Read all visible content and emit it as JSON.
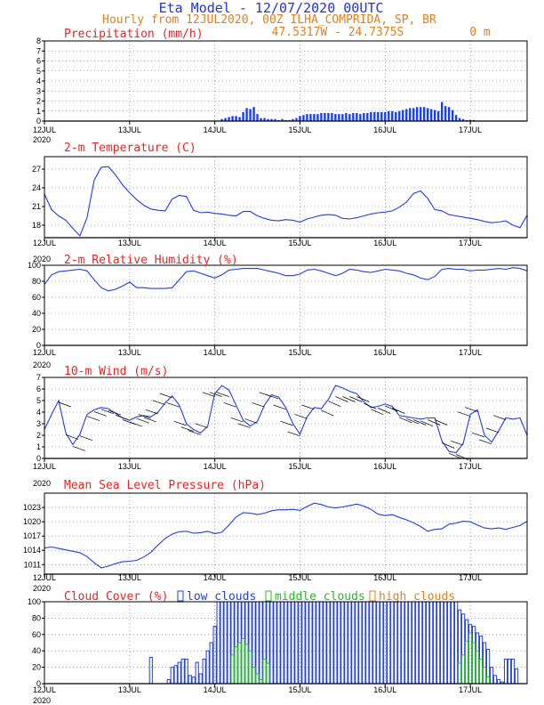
{
  "header": {
    "title": "Eta Model - 12/07/2020 00UTC",
    "subtitle": "Hourly from 12JUL2020, 00Z  ILHA_COMPRIDA, SP, BR",
    "coords": "47.5317W - 24.7375S",
    "elevation": "0  m"
  },
  "colors": {
    "title": "#2233dd",
    "subtitle": "#e08020",
    "panel_title": "#ee2222",
    "series": "#1f3fe0",
    "low": "#1f3fe0",
    "middle": "#22bb22",
    "high": "#e08020"
  },
  "x_ticks": [
    "12JUL",
    "13JUL",
    "14JUL",
    "15JUL",
    "16JUL",
    "17JUL"
  ],
  "x_year": "2020",
  "chart_data": [
    {
      "id": "precip",
      "type": "bar",
      "title": "Precipitation (mm/h)",
      "ylim": [
        0,
        8
      ],
      "yticks": [
        0,
        1,
        2,
        3,
        4,
        5,
        6,
        7,
        8
      ],
      "grid": true,
      "x": [
        50,
        51,
        52,
        53,
        54,
        55,
        56,
        57,
        58,
        59,
        60,
        61,
        62,
        63,
        64,
        65,
        66,
        67,
        68,
        69,
        70,
        71,
        72,
        73,
        74,
        75,
        76,
        77,
        78,
        79,
        80,
        81,
        82,
        83,
        84,
        85,
        86,
        87,
        88,
        89,
        90,
        91,
        92,
        93,
        94,
        95,
        96,
        97,
        98,
        99,
        100,
        101,
        102,
        103,
        104,
        105,
        106,
        107,
        108,
        109,
        110,
        111,
        112,
        113,
        114,
        115,
        116,
        117,
        118,
        119,
        120,
        121
      ],
      "values": [
        0.2,
        0.3,
        0.4,
        0.5,
        0.5,
        0.4,
        0.9,
        1.3,
        1.2,
        1.4,
        0.7,
        0.3,
        0.3,
        0.2,
        0.2,
        0.2,
        0.1,
        0.2,
        0.1,
        0.1,
        0.2,
        0.3,
        0.5,
        0.6,
        0.7,
        0.7,
        0.7,
        0.7,
        0.8,
        0.8,
        0.8,
        0.8,
        0.7,
        0.7,
        0.7,
        0.8,
        0.7,
        0.8,
        0.8,
        0.7,
        0.8,
        0.8,
        0.9,
        0.9,
        0.9,
        0.9,
        0.9,
        1.0,
        1.0,
        0.9,
        1.0,
        1.1,
        1.2,
        1.3,
        1.3,
        1.4,
        1.4,
        1.4,
        1.3,
        1.2,
        1.1,
        1.0,
        1.9,
        1.5,
        1.4,
        1.1,
        0.6,
        0.3,
        0.2,
        0.1,
        0.1,
        0.1
      ]
    },
    {
      "id": "temp",
      "type": "line",
      "title": "2-m Temperature (C)",
      "ylim": [
        16,
        29
      ],
      "yticks": [
        18,
        21,
        24,
        27
      ],
      "grid": true,
      "x": [
        0,
        2,
        4,
        6,
        8,
        10,
        12,
        14,
        16,
        18,
        20,
        22,
        24,
        26,
        28,
        30,
        32,
        34,
        36,
        38,
        40,
        42,
        44,
        46,
        48,
        50,
        52,
        54,
        56,
        58,
        60,
        62,
        64,
        66,
        68,
        70,
        72,
        74,
        76,
        78,
        80,
        82,
        84,
        86,
        88,
        90,
        92,
        94,
        96,
        98,
        100,
        102,
        104,
        106,
        108,
        110,
        112,
        114,
        116,
        118,
        120,
        122,
        124,
        126,
        128,
        130,
        132,
        134,
        136
      ],
      "values": [
        23,
        20.5,
        19.5,
        18.8,
        17.5,
        16.3,
        19.2,
        25.2,
        27.3,
        27.4,
        26.1,
        24.5,
        23.2,
        22.1,
        21.2,
        20.6,
        20.4,
        20.3,
        22.2,
        22.8,
        22.6,
        20.4,
        20.0,
        20.1,
        19.9,
        19.8,
        19.6,
        19.5,
        20.2,
        20.2,
        19.5,
        19.1,
        18.8,
        18.7,
        18.9,
        18.8,
        18.5,
        19.0,
        19.3,
        19.6,
        19.7,
        19.6,
        19.1,
        19.0,
        19.2,
        19.5,
        19.8,
        20.0,
        20.1,
        20.3,
        20.9,
        21.7,
        23.1,
        23.5,
        22.3,
        20.5,
        20.3,
        19.7,
        19.5,
        19.3,
        19.1,
        18.9,
        18.6,
        18.4,
        18.5,
        18.7,
        18.0,
        17.6,
        19.6
      ]
    },
    {
      "id": "rh",
      "type": "line",
      "title": "2-m Relative Humidity (%)",
      "ylim": [
        0,
        100
      ],
      "yticks": [
        0,
        20,
        40,
        60,
        80,
        100
      ],
      "grid": true,
      "x": [
        0,
        2,
        4,
        6,
        8,
        10,
        12,
        14,
        16,
        18,
        20,
        22,
        24,
        26,
        28,
        30,
        32,
        34,
        36,
        38,
        40,
        42,
        44,
        46,
        48,
        50,
        52,
        54,
        56,
        58,
        60,
        62,
        64,
        66,
        68,
        70,
        72,
        74,
        76,
        78,
        80,
        82,
        84,
        86,
        88,
        90,
        92,
        94,
        96,
        98,
        100,
        102,
        104,
        106,
        108,
        110,
        112,
        114,
        116,
        118,
        120,
        122,
        124,
        126,
        128,
        130,
        132,
        134,
        136
      ],
      "values": [
        76,
        88,
        92,
        93,
        94,
        95,
        93,
        82,
        72,
        68,
        70,
        74,
        79,
        72,
        72,
        71,
        71,
        71,
        72,
        82,
        92,
        93,
        90,
        87,
        84,
        88,
        94,
        95,
        96,
        96,
        96,
        94,
        92,
        90,
        87,
        87,
        89,
        94,
        95,
        93,
        90,
        87,
        90,
        95,
        94,
        92,
        91,
        93,
        95,
        94,
        93,
        90,
        88,
        84,
        82,
        86,
        95,
        96,
        95,
        95,
        93,
        94,
        94,
        95,
        96,
        95,
        97,
        96,
        93
      ]
    },
    {
      "id": "wind",
      "type": "line",
      "title": "10-m Wind (m/s)",
      "ylim": [
        0,
        7
      ],
      "yticks": [
        0,
        1,
        2,
        3,
        4,
        5,
        6,
        7
      ],
      "grid": true,
      "x": [
        0,
        2,
        4,
        6,
        8,
        10,
        12,
        14,
        16,
        18,
        20,
        22,
        24,
        26,
        28,
        30,
        32,
        34,
        36,
        38,
        40,
        42,
        44,
        46,
        48,
        50,
        52,
        54,
        56,
        58,
        60,
        62,
        64,
        66,
        68,
        70,
        72,
        74,
        76,
        78,
        80,
        82,
        84,
        86,
        88,
        90,
        92,
        94,
        96,
        98,
        100,
        102,
        104,
        106,
        108,
        110,
        112,
        114,
        116,
        118,
        120,
        122,
        124,
        126,
        128,
        130,
        132,
        134,
        136
      ],
      "values": [
        2.5,
        3.8,
        5.0,
        2.2,
        1.2,
        2.1,
        3.8,
        4.2,
        4.4,
        4.3,
        3.9,
        3.5,
        3.3,
        3.6,
        3.7,
        3.6,
        4.0,
        4.8,
        5.4,
        4.6,
        3.0,
        2.5,
        2.2,
        2.8,
        5.6,
        6.3,
        5.9,
        4.6,
        3.3,
        2.8,
        3.2,
        4.6,
        5.5,
        5.3,
        4.4,
        3.0,
        2.1,
        3.6,
        4.4,
        4.3,
        5.1,
        6.3,
        6.1,
        5.8,
        5.6,
        4.9,
        4.4,
        4.5,
        4.7,
        4.5,
        3.7,
        3.6,
        3.5,
        3.4,
        3.5,
        3.5,
        1.5,
        0.6,
        0.5,
        1.3,
        3.8,
        4.2,
        2.0,
        1.4,
        2.4,
        3.5,
        3.4,
        3.5,
        2.0
      ]
    },
    {
      "id": "mslp",
      "type": "line",
      "title": "Mean Sea Level Pressure (hPa)",
      "ylim": [
        1009,
        1026
      ],
      "yticks": [
        1011,
        1014,
        1017,
        1020,
        1023
      ],
      "grid": true,
      "x": [
        0,
        2,
        4,
        6,
        8,
        10,
        12,
        14,
        16,
        18,
        20,
        22,
        24,
        26,
        28,
        30,
        32,
        34,
        36,
        38,
        40,
        42,
        44,
        46,
        48,
        50,
        52,
        54,
        56,
        58,
        60,
        62,
        64,
        66,
        68,
        70,
        72,
        74,
        76,
        78,
        80,
        82,
        84,
        86,
        88,
        90,
        92,
        94,
        96,
        98,
        100,
        102,
        104,
        106,
        108,
        110,
        112,
        114,
        116,
        118,
        120,
        122,
        124,
        126,
        128,
        130,
        132,
        134,
        136
      ],
      "values": [
        1014.5,
        1014.7,
        1014.4,
        1014.1,
        1013.8,
        1013.5,
        1012.7,
        1011.4,
        1010.3,
        1010.7,
        1011.2,
        1011.6,
        1011.7,
        1011.9,
        1012.6,
        1013.6,
        1015.1,
        1016.5,
        1017.4,
        1017.9,
        1018.0,
        1017.6,
        1017.7,
        1018.0,
        1017.5,
        1017.8,
        1019.3,
        1021.0,
        1021.9,
        1021.8,
        1021.5,
        1021.8,
        1022.3,
        1022.5,
        1022.5,
        1022.6,
        1022.4,
        1023.2,
        1023.9,
        1023.6,
        1023.1,
        1022.9,
        1023.1,
        1023.4,
        1023.7,
        1023.3,
        1022.6,
        1021.6,
        1021.3,
        1021.5,
        1020.9,
        1020.4,
        1019.8,
        1019.0,
        1018.0,
        1018.4,
        1018.5,
        1019.5,
        1019.7,
        1020.1,
        1020.0,
        1019.3,
        1018.7,
        1018.5,
        1018.7,
        1018.4,
        1018.8,
        1019.2,
        1020.1
      ]
    },
    {
      "id": "clouds",
      "type": "bar",
      "title": "Cloud Cover (%)",
      "ylim": [
        0,
        100
      ],
      "yticks": [
        0,
        20,
        40,
        60,
        80,
        100
      ],
      "grid": true,
      "legend": [
        "low clouds",
        "middle clouds",
        "high clouds"
      ],
      "x": [
        30,
        31,
        32,
        33,
        34,
        35,
        36,
        37,
        38,
        39,
        40,
        41,
        42,
        43,
        44,
        45,
        46,
        47,
        48,
        49,
        50,
        51,
        52,
        53,
        54,
        55,
        56,
        57,
        58,
        59,
        60,
        61,
        62,
        63,
        64,
        65,
        66,
        67,
        68,
        69,
        70,
        71,
        72,
        73,
        74,
        75,
        76,
        77,
        78,
        79,
        80,
        81,
        82,
        83,
        84,
        85,
        86,
        87,
        88,
        89,
        90,
        91,
        92,
        93,
        94,
        95,
        96,
        97,
        98,
        99,
        100,
        101,
        102,
        103,
        104,
        105,
        106,
        107,
        108,
        109,
        110,
        111,
        112,
        113,
        114,
        115,
        116,
        117,
        118,
        119,
        120,
        121,
        122,
        123,
        124,
        125,
        126,
        127,
        128,
        129,
        130,
        131,
        132,
        133
      ],
      "series": [
        {
          "name": "low clouds",
          "values": [
            32,
            0,
            0,
            0,
            0,
            5,
            20,
            22,
            26,
            30,
            30,
            10,
            8,
            26,
            12,
            30,
            40,
            50,
            70,
            100,
            100,
            100,
            100,
            100,
            100,
            100,
            100,
            100,
            100,
            100,
            100,
            100,
            100,
            100,
            100,
            100,
            100,
            100,
            100,
            100,
            100,
            100,
            100,
            100,
            100,
            100,
            100,
            100,
            100,
            100,
            100,
            100,
            100,
            100,
            100,
            100,
            100,
            100,
            100,
            100,
            100,
            100,
            100,
            100,
            100,
            100,
            100,
            100,
            100,
            100,
            100,
            100,
            100,
            100,
            100,
            100,
            100,
            100,
            100,
            100,
            100,
            100,
            100,
            100,
            100,
            100,
            100,
            90,
            85,
            78,
            72,
            70,
            62,
            58,
            50,
            42,
            20,
            10,
            5,
            2,
            30,
            30,
            30,
            18
          ]
        },
        {
          "name": "middle clouds",
          "values": [
            0,
            0,
            0,
            0,
            0,
            0,
            0,
            0,
            0,
            0,
            0,
            0,
            0,
            0,
            0,
            0,
            0,
            0,
            0,
            0,
            0,
            0,
            0,
            35,
            45,
            50,
            55,
            48,
            40,
            20,
            12,
            5,
            30,
            25,
            0,
            0,
            0,
            0,
            0,
            0,
            0,
            0,
            0,
            0,
            0,
            0,
            0,
            0,
            0,
            0,
            0,
            0,
            0,
            0,
            0,
            0,
            0,
            0,
            0,
            0,
            0,
            0,
            0,
            0,
            0,
            0,
            0,
            0,
            0,
            0,
            0,
            0,
            0,
            0,
            0,
            0,
            0,
            0,
            0,
            0,
            0,
            0,
            0,
            0,
            0,
            0,
            0,
            25,
            35,
            52,
            62,
            50,
            40,
            30,
            20,
            8,
            0,
            0,
            0,
            0,
            0,
            0,
            0,
            0
          ]
        },
        {
          "name": "high clouds",
          "values": [
            0,
            0,
            0,
            0,
            0,
            0,
            0,
            0,
            0,
            0,
            0,
            0,
            0,
            0,
            0,
            0,
            0,
            0,
            0,
            0,
            0,
            0,
            0,
            0,
            0,
            0,
            0,
            0,
            0,
            0,
            0,
            0,
            0,
            0,
            0,
            0,
            0,
            0,
            0,
            0,
            0,
            0,
            0,
            0,
            0,
            0,
            0,
            0,
            0,
            0,
            0,
            0,
            0,
            0,
            0,
            0,
            0,
            0,
            0,
            0,
            0,
            0,
            0,
            0,
            0,
            0,
            0,
            0,
            0,
            0,
            0,
            0,
            0,
            0,
            0,
            0,
            0,
            0,
            0,
            0,
            0,
            0,
            0,
            0,
            0,
            0,
            0,
            0,
            0,
            0,
            0,
            0,
            0,
            0,
            0,
            0,
            0,
            0,
            0,
            0,
            0,
            0,
            0,
            0
          ]
        }
      ]
    }
  ]
}
